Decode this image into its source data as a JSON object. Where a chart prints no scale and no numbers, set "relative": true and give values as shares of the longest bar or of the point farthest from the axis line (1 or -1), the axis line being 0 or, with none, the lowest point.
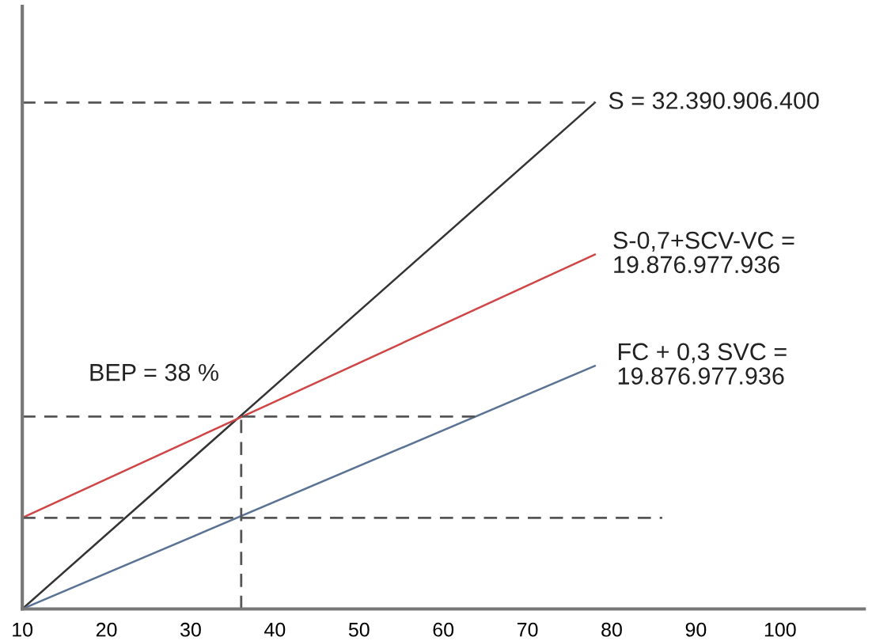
{
  "chart_data": {
    "type": "line",
    "relative": true,
    "xlim": [
      10,
      110
    ],
    "xticks": [
      10,
      20,
      30,
      40,
      50,
      60,
      70,
      80,
      90,
      100
    ],
    "grid": false,
    "legend": false,
    "marker": "none",
    "series": [
      {
        "color": "#333333",
        "x": [
          10,
          78
        ],
        "values": [
          0,
          1
        ]
      },
      {
        "color": "#d04545",
        "x": [
          10,
          78
        ],
        "values": [
          0.18,
          0.7
        ]
      },
      {
        "color": "#5a7394",
        "x": [
          10,
          78
        ],
        "values": [
          0,
          0.48
        ]
      },
      {
        "color": "#555555",
        "line_style": "dashed",
        "x": [
          10,
          78
        ],
        "values": [
          1,
          1
        ]
      },
      {
        "color": "#555555",
        "line_style": "dashed",
        "x": [
          10,
          64
        ],
        "values": [
          0.38,
          0.38
        ]
      },
      {
        "color": "#555555",
        "line_style": "dashed",
        "x": [
          10,
          86
        ],
        "values": [
          0.18,
          0.18
        ]
      },
      {
        "color": "#555555",
        "line_style": "dashed",
        "x": [
          36,
          36
        ],
        "values": [
          0,
          0.38
        ]
      }
    ],
    "annotations": [
      "S = 32.390.906.400",
      "S-0,7+SCV-VC =\n19.876.977.936",
      "FC + 0,3 SVC =\n19.876.977.936",
      "BEP = 38 %"
    ]
  }
}
